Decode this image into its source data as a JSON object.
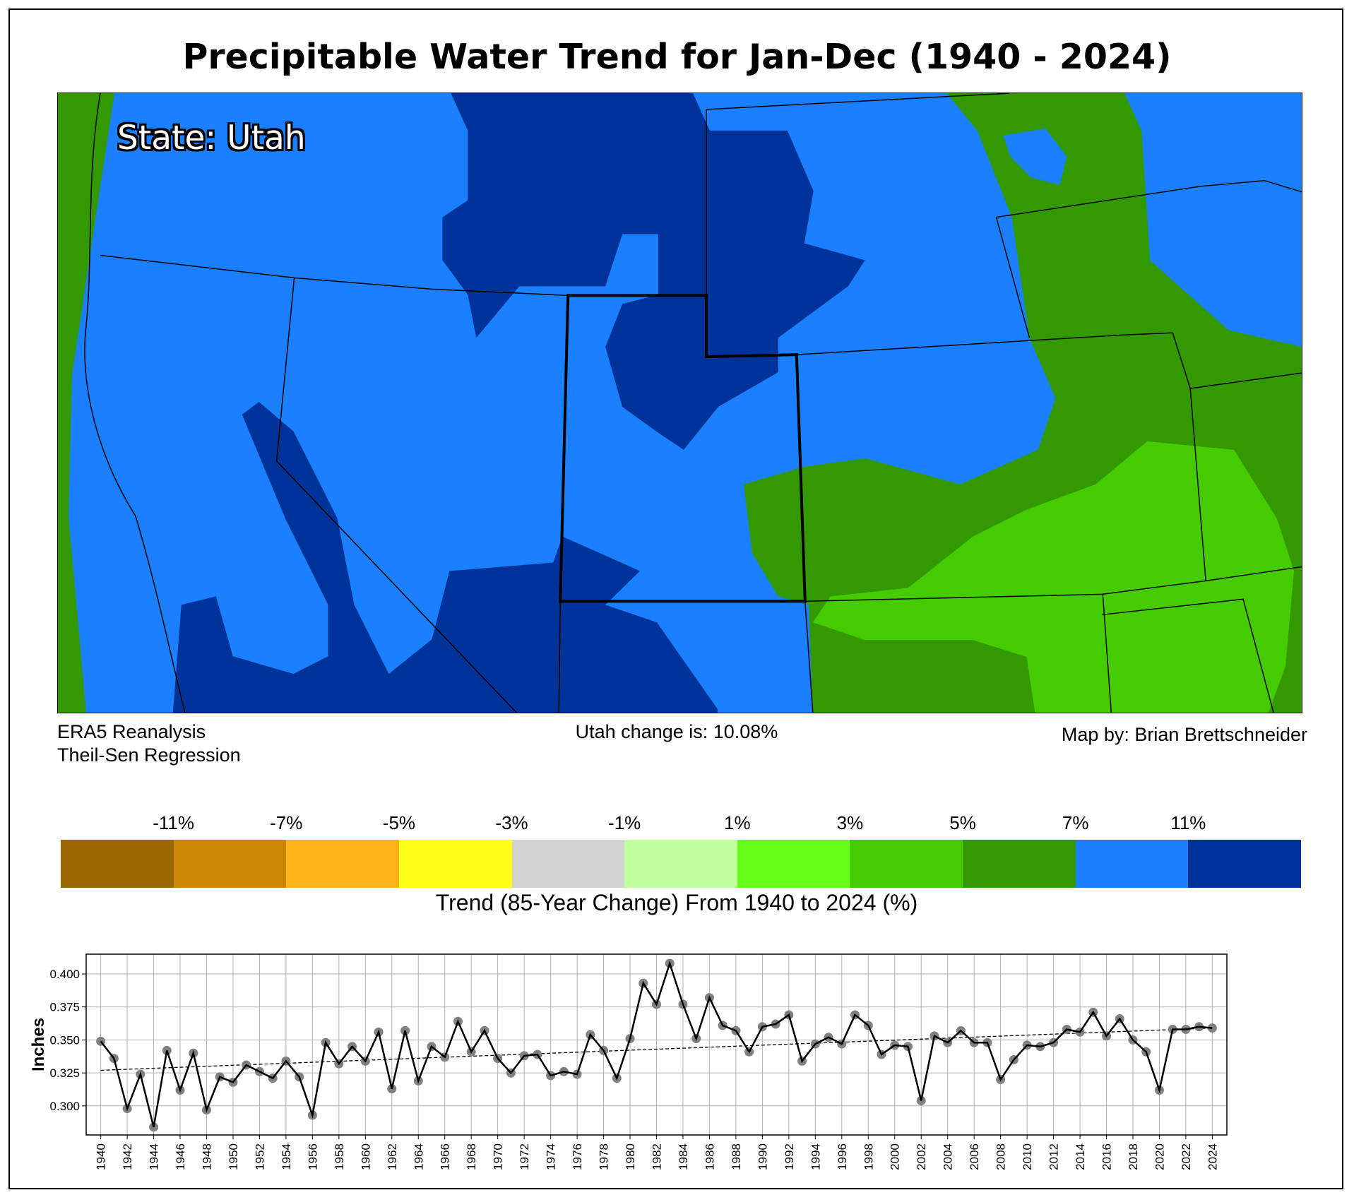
{
  "title": "Precipitable Water Trend for Jan-Dec (1940 - 2024)",
  "map": {
    "state_label": "State: Utah",
    "source_line1": "ERA5 Reanalysis",
    "source_line2": "Theil-Sen Regression",
    "state_change": "Utah change is: 10.08%",
    "credit": "Map by: Brian Brettschneider",
    "colors": {
      "dark_blue": "#003399",
      "blue": "#1a80ff",
      "green": "#339900",
      "light_green": "#44cc00"
    }
  },
  "colorbar": {
    "colors": [
      "#996600",
      "#cc8800",
      "#ffb31a",
      "#ffff1a",
      "#d3d3d3",
      "#c0ffa0",
      "#66ff1a",
      "#44cc00",
      "#339900",
      "#1a80ff",
      "#003399"
    ],
    "labels": [
      "-11%",
      "-7%",
      "-5%",
      "-3%",
      "-1%",
      "1%",
      "3%",
      "5%",
      "7%",
      "11%"
    ],
    "caption": "Trend (85-Year Change) From 1940 to 2024 (%)"
  },
  "chart_data": {
    "type": "line",
    "title": "",
    "xlabel": "",
    "ylabel": "Inches",
    "xlim": [
      1938.9,
      2025.1
    ],
    "ylim": [
      0.278,
      0.415
    ],
    "grid": true,
    "yticks": [
      "0.300",
      "0.325",
      "0.350",
      "0.375",
      "0.400"
    ],
    "x": [
      1940,
      1941,
      1942,
      1943,
      1944,
      1945,
      1946,
      1947,
      1948,
      1949,
      1950,
      1951,
      1952,
      1953,
      1954,
      1955,
      1956,
      1957,
      1958,
      1959,
      1960,
      1961,
      1962,
      1963,
      1964,
      1965,
      1966,
      1967,
      1968,
      1969,
      1970,
      1971,
      1972,
      1973,
      1974,
      1975,
      1976,
      1977,
      1978,
      1979,
      1980,
      1981,
      1982,
      1983,
      1984,
      1985,
      1986,
      1987,
      1988,
      1989,
      1990,
      1991,
      1992,
      1993,
      1994,
      1995,
      1996,
      1997,
      1998,
      1999,
      2000,
      2001,
      2002,
      2003,
      2004,
      2005,
      2006,
      2007,
      2008,
      2009,
      2010,
      2011,
      2012,
      2013,
      2014,
      2015,
      2016,
      2017,
      2018,
      2019,
      2020,
      2021,
      2022,
      2023,
      2024
    ],
    "values": [
      0.349,
      0.336,
      0.298,
      0.324,
      0.284,
      0.342,
      0.312,
      0.34,
      0.297,
      0.322,
      0.318,
      0.331,
      0.326,
      0.321,
      0.334,
      0.322,
      0.293,
      0.348,
      0.332,
      0.345,
      0.334,
      0.356,
      0.313,
      0.357,
      0.319,
      0.345,
      0.337,
      0.364,
      0.341,
      0.357,
      0.336,
      0.325,
      0.338,
      0.339,
      0.323,
      0.326,
      0.324,
      0.354,
      0.342,
      0.321,
      0.351,
      0.393,
      0.377,
      0.408,
      0.377,
      0.351,
      0.382,
      0.361,
      0.357,
      0.341,
      0.36,
      0.362,
      0.369,
      0.334,
      0.347,
      0.352,
      0.347,
      0.369,
      0.361,
      0.339,
      0.346,
      0.345,
      0.304,
      0.353,
      0.348,
      0.357,
      0.348,
      0.348,
      0.32,
      0.335,
      0.346,
      0.345,
      0.348,
      0.358,
      0.356,
      0.371,
      0.353,
      0.366,
      0.35,
      0.341,
      0.312,
      0.358,
      0.358,
      0.36,
      0.359
    ],
    "trend": {
      "start": 0.327,
      "end": 0.359
    },
    "series_colors": {
      "line": "#000000",
      "marker": "#808080",
      "trend": "#000000"
    }
  }
}
